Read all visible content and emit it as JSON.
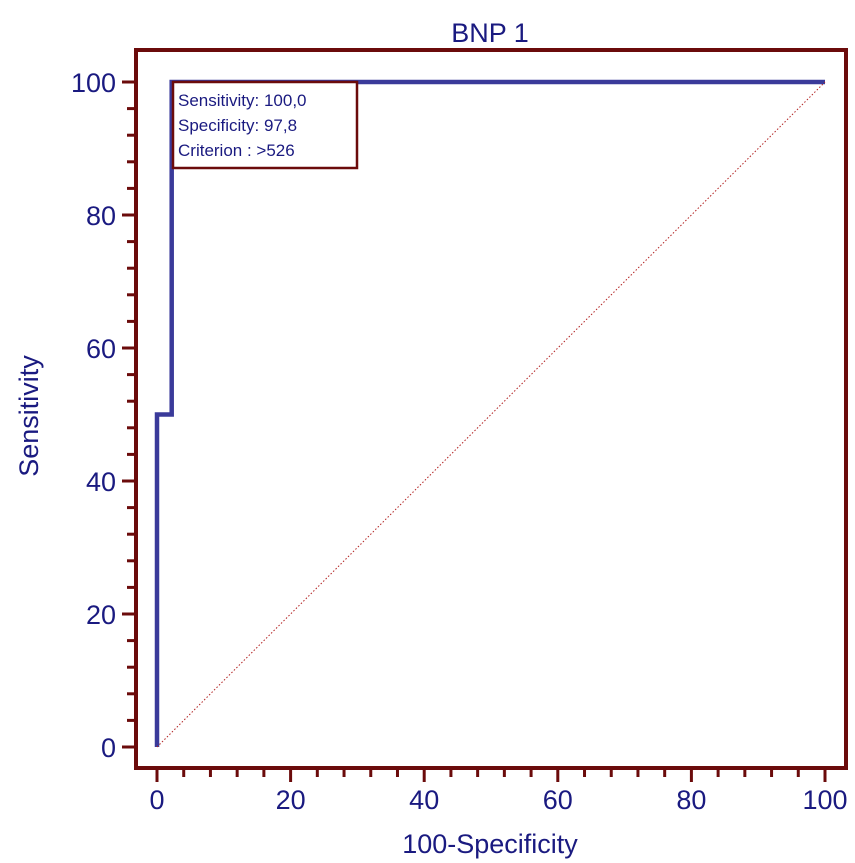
{
  "chart_data": {
    "type": "line",
    "title": "BNP 1",
    "xlabel": "100-Specificity",
    "ylabel": "Sensitivity",
    "xlim": [
      0,
      100
    ],
    "ylim": [
      0,
      100
    ],
    "xticks": [
      0,
      20,
      40,
      60,
      80,
      100
    ],
    "yticks": [
      0,
      20,
      40,
      60,
      80,
      100
    ],
    "minor_tick_step": 4,
    "grid": false,
    "series": [
      {
        "role": "roc-curve",
        "x": [
          0,
          0,
          2.2,
          2.2,
          100
        ],
        "y": [
          0,
          50,
          50,
          100,
          100
        ]
      },
      {
        "role": "reference-diagonal",
        "x": [
          0,
          100
        ],
        "y": [
          0,
          100
        ]
      }
    ],
    "annotation": {
      "lines": [
        "Sensitivity: 100,0",
        "Specificity: 97,8",
        "Criterion : >526"
      ]
    },
    "colors": {
      "frame": "#6b0b0b",
      "curve": "#3a3a9a",
      "diagonal": "#b22222",
      "text": "#1a1a80",
      "background": "#ffffff"
    }
  }
}
